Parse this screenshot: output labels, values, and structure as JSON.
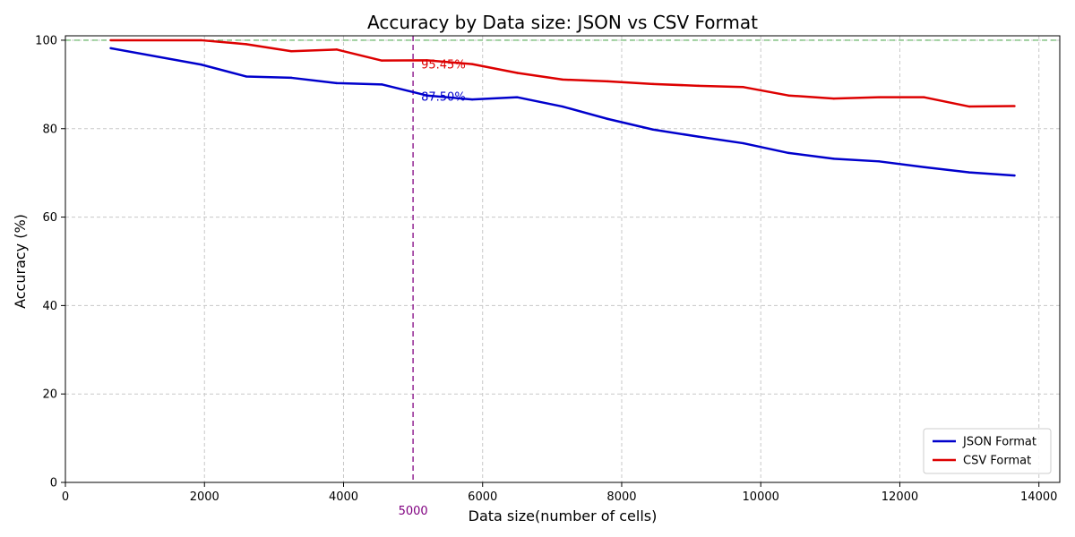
{
  "chart_data": {
    "type": "line",
    "title": "Accuracy by Data size: JSON vs CSV Format",
    "xlabel": "Data size(number of cells)",
    "ylabel": "Accuracy (%)",
    "xlim": [
      0,
      14300
    ],
    "ylim": [
      0,
      101
    ],
    "xticks": [
      0,
      2000,
      4000,
      6000,
      8000,
      10000,
      12000,
      14000
    ],
    "yticks": [
      0,
      20,
      40,
      60,
      80,
      100
    ],
    "grid": true,
    "legend_position": "lower-right",
    "x": [
      650,
      1950,
      2600,
      3250,
      3900,
      4550,
      5200,
      5850,
      6500,
      7150,
      7800,
      8450,
      9100,
      9750,
      10400,
      11050,
      11700,
      12350,
      13000,
      13650
    ],
    "series": [
      {
        "name": "JSON Format",
        "color": "#0000cc",
        "values": [
          98.2,
          94.5,
          91.8,
          91.5,
          90.3,
          90.0,
          87.5,
          86.6,
          87.1,
          85.0,
          82.2,
          79.8,
          78.2,
          76.7,
          74.5,
          73.2,
          72.6,
          71.3,
          70.1,
          69.4
        ]
      },
      {
        "name": "CSV Format",
        "color": "#dd0000",
        "values": [
          100.0,
          100.0,
          99.1,
          97.5,
          97.9,
          95.4,
          95.45,
          94.6,
          92.6,
          91.1,
          90.7,
          90.1,
          89.7,
          89.4,
          87.5,
          86.8,
          87.1,
          87.1,
          85.0,
          85.1
        ]
      }
    ],
    "reference_lines": {
      "horizontal": {
        "y": 100,
        "color": "#2e9e2e"
      },
      "vertical": {
        "x": 5000,
        "color": "#800080",
        "label": "5000"
      }
    },
    "annotations": [
      {
        "text": "95.45%",
        "x": 5000,
        "y": 95.45,
        "color": "#dd0000"
      },
      {
        "text": "87.50%",
        "x": 5000,
        "y": 87.5,
        "color": "#0000cc"
      }
    ]
  }
}
